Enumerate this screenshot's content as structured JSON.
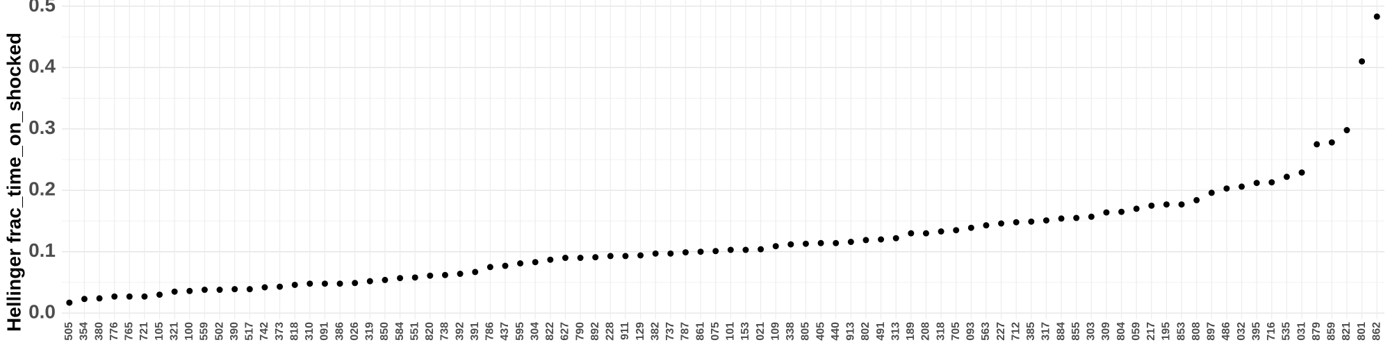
{
  "chart_data": {
    "type": "scatter",
    "y_label": "Hellinger frac_time_on_shocked",
    "categories": [
      "505",
      "354",
      "380",
      "776",
      "765",
      "721",
      "105",
      "321",
      "100",
      "559",
      "502",
      "390",
      "517",
      "742",
      "373",
      "818",
      "310",
      "091",
      "386",
      "026",
      "319",
      "850",
      "584",
      "551",
      "820",
      "738",
      "392",
      "391",
      "786",
      "437",
      "595",
      "304",
      "822",
      "627",
      "790",
      "892",
      "228",
      "911",
      "129",
      "382",
      "737",
      "787",
      "861",
      "075",
      "101",
      "153",
      "021",
      "109",
      "338",
      "805",
      "405",
      "440",
      "913",
      "802",
      "491",
      "313",
      "189",
      "208",
      "318",
      "705",
      "093",
      "563",
      "227",
      "712",
      "385",
      "317",
      "884",
      "855",
      "303",
      "309",
      "804",
      "059",
      "217",
      "195",
      "853",
      "808",
      "897",
      "486",
      "032",
      "395",
      "716",
      "535",
      "031",
      "879",
      "859",
      "821",
      "801",
      "862"
    ],
    "values": [
      0.017,
      0.023,
      0.024,
      0.027,
      0.027,
      0.027,
      0.03,
      0.035,
      0.036,
      0.038,
      0.038,
      0.039,
      0.039,
      0.042,
      0.043,
      0.046,
      0.048,
      0.048,
      0.048,
      0.049,
      0.052,
      0.054,
      0.057,
      0.058,
      0.061,
      0.062,
      0.064,
      0.067,
      0.075,
      0.077,
      0.081,
      0.083,
      0.087,
      0.09,
      0.09,
      0.091,
      0.093,
      0.093,
      0.094,
      0.097,
      0.097,
      0.099,
      0.1,
      0.101,
      0.103,
      0.103,
      0.104,
      0.109,
      0.112,
      0.113,
      0.114,
      0.114,
      0.116,
      0.119,
      0.12,
      0.122,
      0.13,
      0.13,
      0.133,
      0.135,
      0.139,
      0.143,
      0.146,
      0.148,
      0.149,
      0.151,
      0.154,
      0.155,
      0.157,
      0.164,
      0.165,
      0.17,
      0.175,
      0.177,
      0.177,
      0.184,
      0.196,
      0.203,
      0.206,
      0.212,
      0.213,
      0.222,
      0.229,
      0.275,
      0.278,
      0.298,
      0.41,
      0.483
    ],
    "color": "#000000",
    "ylim": [
      -0.01,
      0.51
    ],
    "yticks": [
      {
        "value": 0,
        "label": "0.0"
      },
      0.1,
      0.2,
      0.3,
      0.4,
      0.5
    ],
    "y_minor_ticks": [
      0.05,
      0.15,
      0.25,
      0.35,
      0.45
    ],
    "grid": true
  }
}
